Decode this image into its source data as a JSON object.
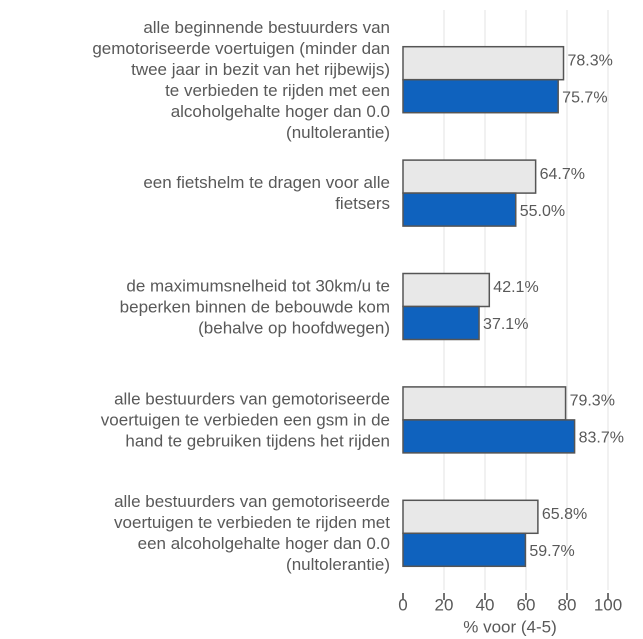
{
  "chart_data": {
    "type": "hbar",
    "categories": [
      "alle beginnende bestuurders van\ngemotoriseerde voertuigen (minder dan\ntwee jaar in bezit van het rijbewijs)\nte verbieden te rijden met een\nalcoholgehalte hoger dan 0.0\n(nultolerantie)",
      "een fietshelm te dragen voor alle\nfietsers",
      "de maximumsnelheid tot 30km/u te\nbeperken binnen de bebouwde kom\n(behalve op hoofdwegen)",
      "alle bestuurders van gemotoriseerde\nvoertuigen te verbieden een gsm in de\nhand te gebruiken tijdens het rijden",
      "alle bestuurders van gemotoriseerde\nvoertuigen te verbieden te rijden met\neen alcoholgehalte hoger dan 0.0\n(nultolerantie)"
    ],
    "series": [
      {
        "color": "#e8e8e8",
        "values": [
          78.3,
          64.7,
          42.1,
          79.3,
          65.8
        ],
        "value_labels": [
          "78.3%",
          "64.7%",
          "42.1%",
          "79.3%",
          "65.8%"
        ]
      },
      {
        "color": "#0f62be",
        "values": [
          75.7,
          55.0,
          37.1,
          83.7,
          59.7
        ],
        "value_labels": [
          "75.7%",
          "55.0%",
          "37.1%",
          "83.7%",
          "59.7%"
        ]
      }
    ],
    "xlabel": "% voor (4-5)",
    "xlim": [
      0,
      100
    ],
    "xticks": [
      0,
      20,
      40,
      60,
      80,
      100
    ],
    "grid": true
  }
}
